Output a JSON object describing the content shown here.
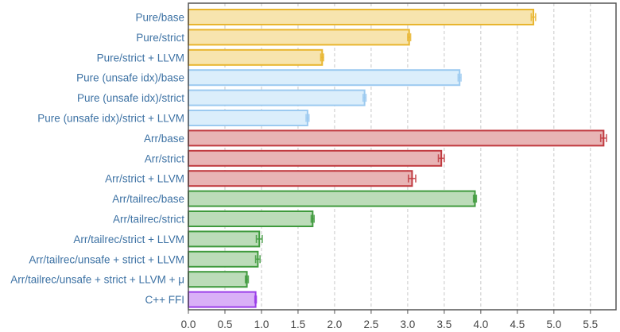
{
  "chart_data": {
    "type": "bar",
    "orientation": "horizontal",
    "title": "",
    "xlabel": "",
    "ylabel": "",
    "xlim": [
      0,
      5.85
    ],
    "xticks": [
      "0.0",
      "0.5",
      "1.0",
      "1.5",
      "2.0",
      "2.5",
      "3.0",
      "3.5",
      "4.0",
      "4.5",
      "5.0",
      "5.5"
    ],
    "grid": "vertical",
    "legend": "none",
    "categories": [
      "Pure/base",
      "Pure/strict",
      "Pure/strict + LLVM",
      "Pure (unsafe idx)/base",
      "Pure (unsafe idx)/strict",
      "Pure (unsafe idx)/strict + LLVM",
      "Arr/base",
      "Arr/strict",
      "Arr/strict + LLVM",
      "Arr/tailrec/base",
      "Arr/tailrec/strict",
      "Arr/tailrec/strict + LLVM",
      "Arr/tailrec/unsafe + strict + LLVM",
      "Arr/tailrec/unsafe + strict + LLVM + μ",
      "C++ FFI"
    ],
    "values": [
      4.72,
      3.02,
      1.83,
      3.71,
      2.41,
      1.63,
      5.68,
      3.46,
      3.06,
      3.92,
      1.7,
      0.97,
      0.95,
      0.8,
      0.92
    ],
    "errors": [
      0.03,
      0.02,
      0.02,
      0.02,
      0.02,
      0.02,
      0.04,
      0.04,
      0.05,
      0.02,
      0.02,
      0.04,
      0.03,
      0.02,
      0.01
    ],
    "colors": [
      "#e8b52e",
      "#e8b52e",
      "#e8b52e",
      "#9ccaf0",
      "#9ccaf0",
      "#9ccaf0",
      "#c0393f",
      "#c0393f",
      "#c0393f",
      "#3f9a3d",
      "#3f9a3d",
      "#3f9a3d",
      "#3f9a3d",
      "#3f9a3d",
      "#9a3ee8"
    ],
    "fill_colors": [
      "#f7e4ae",
      "#f7e4ae",
      "#f7e4ae",
      "#dbeefb",
      "#dbeefb",
      "#dbeefb",
      "#e8b4b5",
      "#e8b4b5",
      "#e8b4b5",
      "#bcdcb9",
      "#bcdcb9",
      "#bcdcb9",
      "#bcdcb9",
      "#bcdcb9",
      "#d9b0f7"
    ]
  }
}
